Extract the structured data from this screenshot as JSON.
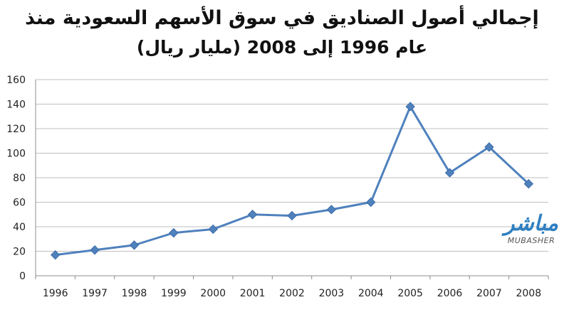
{
  "chart_data": {
    "type": "line",
    "title_line_1": "إجمالي أصول الصناديق في سوق الأسهم السعودية منذ",
    "title_line_2": "عام 1996 إلى 2008 (مليار ريال)",
    "categories": [
      "1996",
      "1997",
      "1998",
      "1999",
      "2000",
      "2001",
      "2002",
      "2003",
      "2004",
      "2005",
      "2006",
      "2007",
      "2008"
    ],
    "values": [
      17,
      21,
      25,
      35,
      38,
      50,
      49,
      54,
      60,
      138,
      84,
      105,
      75
    ],
    "ylim": [
      0,
      160
    ],
    "yticks": [
      "0",
      "20",
      "40",
      "60",
      "80",
      "100",
      "120",
      "140",
      "160"
    ],
    "grid": true,
    "series_color": "#4f81bd"
  },
  "logo": {
    "arabic": "مباشر",
    "latin": "MUBASHER"
  }
}
